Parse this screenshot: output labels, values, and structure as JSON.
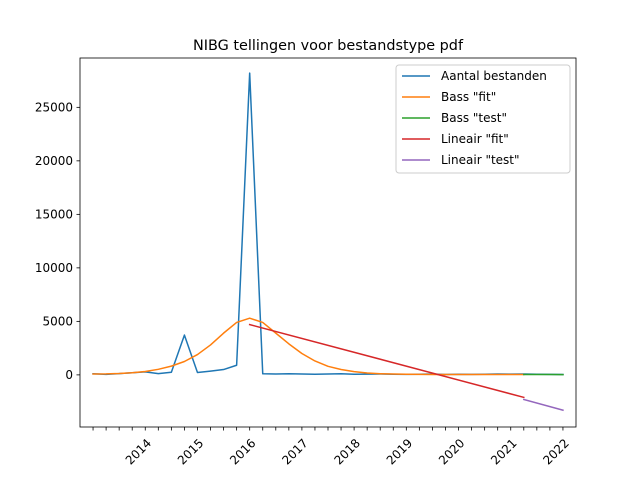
{
  "chart_data": {
    "type": "line",
    "title": "NIBG tellingen voor bestandstype pdf",
    "xlabel": "",
    "ylabel": "",
    "grid": false,
    "legend_placement": "top-right",
    "x_index_range": [
      -1,
      37
    ],
    "ylim": [
      -4870,
      29610
    ],
    "x_ticks": {
      "positions": [
        0,
        1,
        2,
        3,
        4,
        5,
        6,
        7,
        8,
        9,
        10,
        11,
        12,
        13,
        14,
        15,
        16,
        17,
        18,
        19,
        20,
        21,
        22,
        23,
        24,
        25,
        26,
        27,
        28,
        29,
        30,
        31,
        32,
        33,
        34,
        35,
        36
      ],
      "labels": [
        {
          "pos": 4,
          "text": "2014"
        },
        {
          "pos": 8,
          "text": "2015"
        },
        {
          "pos": 12,
          "text": "2016"
        },
        {
          "pos": 16,
          "text": "2017"
        },
        {
          "pos": 20,
          "text": "2018"
        },
        {
          "pos": 24,
          "text": "2019"
        },
        {
          "pos": 28,
          "text": "2020"
        },
        {
          "pos": 32,
          "text": "2021"
        },
        {
          "pos": 36,
          "text": "2022"
        }
      ]
    },
    "y_ticks": [
      0,
      5000,
      10000,
      15000,
      20000,
      25000
    ],
    "series": [
      {
        "name": "Aantal bestanden",
        "color": "#1f77b4",
        "x": [
          0,
          1,
          2,
          3,
          4,
          5,
          6,
          7,
          8,
          9,
          10,
          11,
          12,
          13,
          14,
          15,
          16,
          17,
          18,
          19,
          20,
          21,
          22,
          23,
          24,
          25,
          26,
          27,
          28,
          29,
          30,
          31,
          32,
          33,
          34,
          35,
          36
        ],
        "y": [
          100,
          50,
          120,
          200,
          280,
          120,
          250,
          3720,
          220,
          350,
          500,
          900,
          28200,
          100,
          80,
          100,
          80,
          60,
          80,
          100,
          60,
          70,
          80,
          60,
          50,
          60,
          80,
          40,
          60,
          50,
          60,
          80,
          70,
          80,
          60,
          50,
          40
        ]
      },
      {
        "name": "Bass \"fit\"",
        "color": "#ff7f0e",
        "x": [
          0,
          1,
          2,
          3,
          4,
          5,
          6,
          7,
          8,
          9,
          10,
          11,
          12,
          13,
          14,
          15,
          16,
          17,
          18,
          19,
          20,
          21,
          22,
          23,
          24,
          25,
          26,
          27,
          28,
          29,
          30,
          31,
          32,
          33
        ],
        "y": [
          80,
          90,
          130,
          200,
          320,
          520,
          820,
          1250,
          1900,
          2800,
          3900,
          4900,
          5300,
          4900,
          3900,
          2900,
          2000,
          1300,
          800,
          500,
          300,
          180,
          110,
          80,
          60,
          50,
          40,
          40,
          30,
          30,
          30,
          30,
          30,
          30
        ]
      },
      {
        "name": "Bass \"test\"",
        "color": "#2ca02c",
        "x": [
          33,
          34,
          35,
          36
        ],
        "y": [
          40,
          35,
          30,
          25
        ]
      },
      {
        "name": "Lineair \"fit\"",
        "color": "#d62728",
        "x": [
          12,
          33
        ],
        "y": [
          4700,
          -2100
        ]
      },
      {
        "name": "Lineair \"test\"",
        "color": "#9467bd",
        "x": [
          33,
          36
        ],
        "y": [
          -2300,
          -3300
        ]
      }
    ]
  }
}
